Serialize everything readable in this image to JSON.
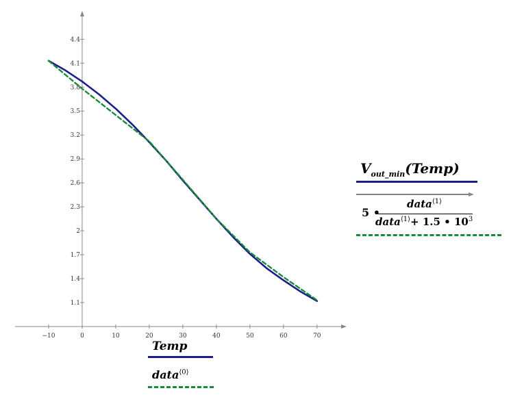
{
  "colors": {
    "solid": "#1b1f8a",
    "dashed": "#1a8a3a",
    "axis": "#888888"
  },
  "chart_data": {
    "type": "line",
    "xlim": [
      -20,
      78
    ],
    "ylim": [
      0.8,
      4.72
    ],
    "x_ticks": [
      -10,
      0,
      10,
      20,
      30,
      40,
      50,
      60,
      70
    ],
    "x_tick_labels": [
      "−10",
      "0",
      "10",
      "20",
      "30",
      "40",
      "50",
      "60",
      "70"
    ],
    "y_ticks": [
      1.1,
      1.4,
      1.7,
      2,
      2.3,
      2.6,
      2.9,
      3.2,
      3.5,
      3.8,
      4.1,
      4.4
    ],
    "y_tick_labels": [
      "1.1",
      "1.4",
      "1.7",
      "2",
      "2.3",
      "2.6",
      "2.9",
      "3.2",
      "3.5",
      "3.8",
      "4.1",
      "4.4"
    ],
    "series": [
      {
        "name": "V_out_min(Temp)",
        "style": "solid",
        "x": [
          -10,
          -5,
          0,
          5,
          10,
          15,
          20,
          25,
          30,
          35,
          40,
          45,
          50,
          55,
          60,
          65,
          70
        ],
        "y": [
          4.13,
          4.01,
          3.87,
          3.71,
          3.53,
          3.33,
          3.11,
          2.88,
          2.63,
          2.39,
          2.15,
          1.92,
          1.71,
          1.53,
          1.38,
          1.24,
          1.12
        ]
      },
      {
        "name": "data",
        "style": "dashed",
        "x": [
          -10,
          0,
          10,
          20,
          30,
          40,
          50,
          60,
          70
        ],
        "y": [
          4.13,
          3.78,
          3.45,
          3.12,
          2.64,
          2.15,
          1.73,
          1.42,
          1.13
        ]
      }
    ]
  },
  "x_legend": {
    "line1": "Temp",
    "line2_base": "data",
    "line2_sup": "⟨0⟩"
  },
  "y_legend": {
    "v_base": "V",
    "v_sub": "out_min",
    "v_arg": "(Temp)",
    "coef": "5 •",
    "num_base": "data",
    "num_sup": "⟨1⟩",
    "den_base": "data",
    "den_sup": "⟨1⟩",
    "den_rest": "+ 1.5 • 10",
    "den_exp": "3"
  }
}
